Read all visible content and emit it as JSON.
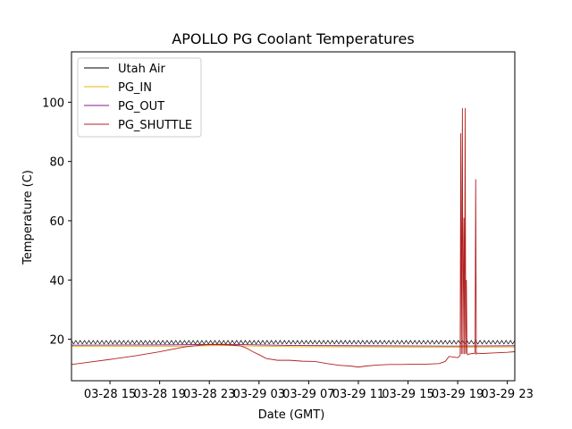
{
  "chart_data": {
    "type": "line",
    "title": "APOLLO PG Coolant Temperatures",
    "xlabel": "Date (GMT)",
    "ylabel": "Temperature (C)",
    "x_unit": "hours since 03-28 00:00 GMT",
    "xlim": [
      11.9,
      47.6
    ],
    "ylim": [
      6,
      117
    ],
    "grid": false,
    "legend_position": "upper left",
    "xticks": [
      {
        "value": 15,
        "label": "03-28 15"
      },
      {
        "value": 19,
        "label": "03-28 19"
      },
      {
        "value": 23,
        "label": "03-28 23"
      },
      {
        "value": 27,
        "label": "03-29 03"
      },
      {
        "value": 31,
        "label": "03-29 07"
      },
      {
        "value": 35,
        "label": "03-29 11"
      },
      {
        "value": 39,
        "label": "03-29 15"
      },
      {
        "value": 43,
        "label": "03-29 19"
      },
      {
        "value": 47,
        "label": "03-29 23"
      }
    ],
    "yticks": [
      20,
      40,
      60,
      80,
      100
    ],
    "series": [
      {
        "name": "Utah Air",
        "color": "#000000",
        "style": "sawtooth",
        "base": 19.0,
        "amplitude": 0.6,
        "period_hours": 0.35,
        "x": [
          11.9,
          47.6
        ],
        "values": [
          19.0,
          19.0
        ]
      },
      {
        "name": "PG_IN",
        "color": "#e6b800",
        "x": [
          11.9,
          20,
          24,
          30,
          36,
          42,
          47.6
        ],
        "values": [
          17.6,
          17.6,
          17.9,
          17.5,
          17.4,
          17.3,
          17.4
        ]
      },
      {
        "name": "PG_OUT",
        "color": "#8b1a8b",
        "x": [
          11.9,
          20,
          24,
          30,
          36,
          42,
          47.6
        ],
        "values": [
          18.0,
          18.1,
          18.3,
          17.9,
          17.8,
          17.7,
          17.8
        ]
      },
      {
        "name": "PG_SHUTTLE",
        "color": "#b22222",
        "x": [
          11.9,
          13,
          15,
          17,
          19,
          21,
          22.5,
          23.5,
          24.5,
          25.5,
          26.0,
          26.5,
          27.0,
          27.6,
          28.5,
          29.5,
          30.5,
          31.5,
          32.5,
          33.5,
          34.5,
          35.0,
          35.5,
          36.5,
          37.5,
          38.5,
          39.5,
          40.5,
          41.5,
          42.0,
          42.3,
          43.0,
          43.2,
          43.25,
          43.3,
          43.38,
          43.42,
          43.5,
          43.55,
          43.6,
          43.65,
          43.7,
          43.75,
          43.8,
          43.9,
          44.2,
          44.4,
          44.45,
          44.5,
          44.55,
          45,
          46,
          47,
          47.6
        ],
        "values": [
          11.5,
          12.1,
          13.2,
          14.4,
          15.8,
          17.4,
          18.1,
          18.2,
          18.1,
          17.8,
          17.0,
          15.8,
          14.8,
          13.5,
          12.9,
          12.9,
          12.6,
          12.5,
          11.8,
          11.2,
          10.9,
          10.6,
          10.9,
          11.3,
          11.5,
          11.5,
          11.6,
          11.6,
          11.8,
          12.5,
          14.2,
          13.8,
          14.5,
          89.5,
          15.0,
          98.0,
          15.0,
          61.0,
          15.0,
          98.0,
          15.0,
          40.0,
          15.5,
          14.8,
          15.0,
          15.2,
          15.3,
          74.0,
          15.0,
          15.3,
          15.2,
          15.4,
          15.6,
          15.8
        ]
      }
    ]
  }
}
